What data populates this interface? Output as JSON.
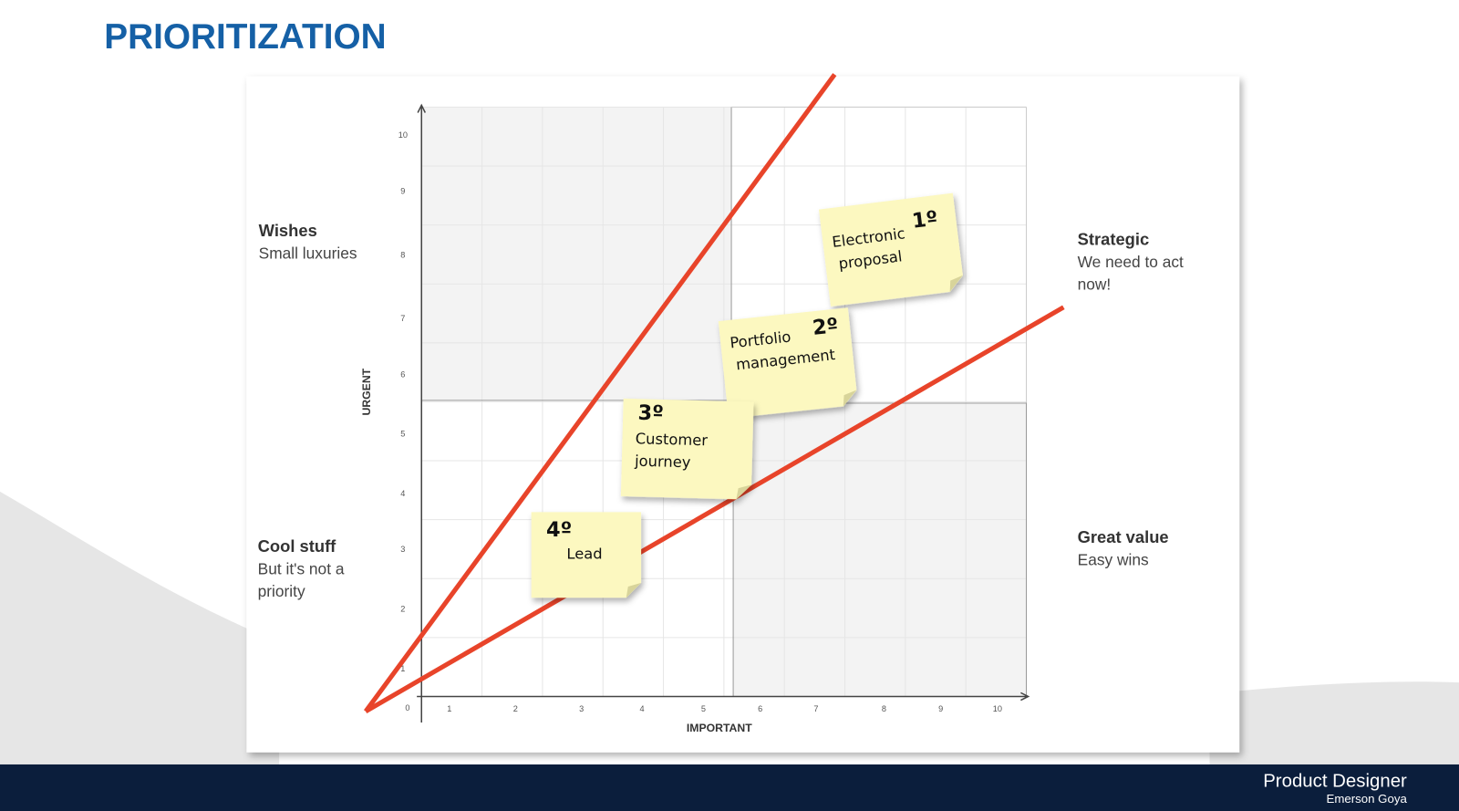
{
  "header": {
    "title": "PRIORITIZATION"
  },
  "quadrants": [
    {
      "title": "Wishes",
      "lines": [
        "Small luxuries"
      ]
    },
    {
      "title": "Cool stuff",
      "lines": [
        "But it's not a",
        "priority"
      ]
    },
    {
      "title": "Strategic",
      "lines": [
        "We need to act",
        "now!"
      ]
    },
    {
      "title": "Great value",
      "lines": [
        "Easy wins"
      ]
    }
  ],
  "axes": {
    "y_label": "URGENT",
    "x_label": "IMPORTANT",
    "origin": "0",
    "x_ticks": [
      "1",
      "2",
      "3",
      "4",
      "5",
      "6",
      "7",
      "8",
      "9",
      "10"
    ],
    "y_ticks": [
      "1",
      "2",
      "3",
      "4",
      "5",
      "6",
      "7",
      "8",
      "9",
      "10"
    ]
  },
  "notes": [
    {
      "rank": "1º",
      "lines": [
        "Electronic",
        "proposal"
      ]
    },
    {
      "rank": "2º",
      "lines": [
        "Portfolio",
        "management"
      ]
    },
    {
      "rank": "3º",
      "lines": [
        "Customer",
        "journey"
      ]
    },
    {
      "rank": "4º",
      "lines": [
        "Lead"
      ]
    }
  ],
  "footer": {
    "role": "Product Designer",
    "name": "Emerson Goya"
  }
}
